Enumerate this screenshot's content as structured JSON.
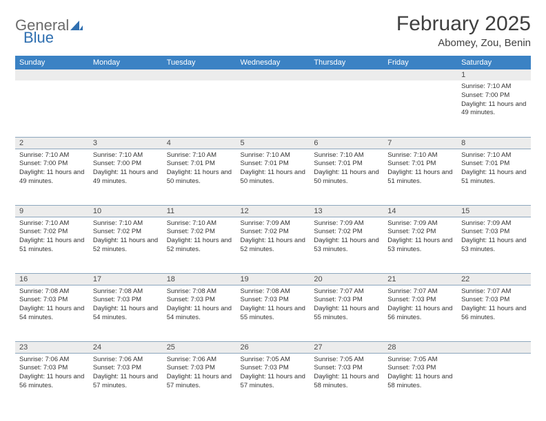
{
  "brand": {
    "part1": "General",
    "part2": "Blue"
  },
  "title": "February 2025",
  "location": "Abomey, Zou, Benin",
  "headerRow": {
    "bg": "#3b82c4",
    "fg": "#ffffff",
    "days": [
      "Sunday",
      "Monday",
      "Tuesday",
      "Wednesday",
      "Thursday",
      "Friday",
      "Saturday"
    ]
  },
  "dayStripe": {
    "bg": "#ececec",
    "border": "#8ca6bd"
  },
  "textColor": "#333333",
  "weeks": [
    [
      null,
      null,
      null,
      null,
      null,
      null,
      {
        "n": "1",
        "sr": "7:10 AM",
        "ss": "7:00 PM",
        "dl": "11 hours and 49 minutes."
      }
    ],
    [
      {
        "n": "2",
        "sr": "7:10 AM",
        "ss": "7:00 PM",
        "dl": "11 hours and 49 minutes."
      },
      {
        "n": "3",
        "sr": "7:10 AM",
        "ss": "7:00 PM",
        "dl": "11 hours and 49 minutes."
      },
      {
        "n": "4",
        "sr": "7:10 AM",
        "ss": "7:01 PM",
        "dl": "11 hours and 50 minutes."
      },
      {
        "n": "5",
        "sr": "7:10 AM",
        "ss": "7:01 PM",
        "dl": "11 hours and 50 minutes."
      },
      {
        "n": "6",
        "sr": "7:10 AM",
        "ss": "7:01 PM",
        "dl": "11 hours and 50 minutes."
      },
      {
        "n": "7",
        "sr": "7:10 AM",
        "ss": "7:01 PM",
        "dl": "11 hours and 51 minutes."
      },
      {
        "n": "8",
        "sr": "7:10 AM",
        "ss": "7:01 PM",
        "dl": "11 hours and 51 minutes."
      }
    ],
    [
      {
        "n": "9",
        "sr": "7:10 AM",
        "ss": "7:02 PM",
        "dl": "11 hours and 51 minutes."
      },
      {
        "n": "10",
        "sr": "7:10 AM",
        "ss": "7:02 PM",
        "dl": "11 hours and 52 minutes."
      },
      {
        "n": "11",
        "sr": "7:10 AM",
        "ss": "7:02 PM",
        "dl": "11 hours and 52 minutes."
      },
      {
        "n": "12",
        "sr": "7:09 AM",
        "ss": "7:02 PM",
        "dl": "11 hours and 52 minutes."
      },
      {
        "n": "13",
        "sr": "7:09 AM",
        "ss": "7:02 PM",
        "dl": "11 hours and 53 minutes."
      },
      {
        "n": "14",
        "sr": "7:09 AM",
        "ss": "7:02 PM",
        "dl": "11 hours and 53 minutes."
      },
      {
        "n": "15",
        "sr": "7:09 AM",
        "ss": "7:03 PM",
        "dl": "11 hours and 53 minutes."
      }
    ],
    [
      {
        "n": "16",
        "sr": "7:08 AM",
        "ss": "7:03 PM",
        "dl": "11 hours and 54 minutes."
      },
      {
        "n": "17",
        "sr": "7:08 AM",
        "ss": "7:03 PM",
        "dl": "11 hours and 54 minutes."
      },
      {
        "n": "18",
        "sr": "7:08 AM",
        "ss": "7:03 PM",
        "dl": "11 hours and 54 minutes."
      },
      {
        "n": "19",
        "sr": "7:08 AM",
        "ss": "7:03 PM",
        "dl": "11 hours and 55 minutes."
      },
      {
        "n": "20",
        "sr": "7:07 AM",
        "ss": "7:03 PM",
        "dl": "11 hours and 55 minutes."
      },
      {
        "n": "21",
        "sr": "7:07 AM",
        "ss": "7:03 PM",
        "dl": "11 hours and 56 minutes."
      },
      {
        "n": "22",
        "sr": "7:07 AM",
        "ss": "7:03 PM",
        "dl": "11 hours and 56 minutes."
      }
    ],
    [
      {
        "n": "23",
        "sr": "7:06 AM",
        "ss": "7:03 PM",
        "dl": "11 hours and 56 minutes."
      },
      {
        "n": "24",
        "sr": "7:06 AM",
        "ss": "7:03 PM",
        "dl": "11 hours and 57 minutes."
      },
      {
        "n": "25",
        "sr": "7:06 AM",
        "ss": "7:03 PM",
        "dl": "11 hours and 57 minutes."
      },
      {
        "n": "26",
        "sr": "7:05 AM",
        "ss": "7:03 PM",
        "dl": "11 hours and 57 minutes."
      },
      {
        "n": "27",
        "sr": "7:05 AM",
        "ss": "7:03 PM",
        "dl": "11 hours and 58 minutes."
      },
      {
        "n": "28",
        "sr": "7:05 AM",
        "ss": "7:03 PM",
        "dl": "11 hours and 58 minutes."
      },
      null
    ]
  ],
  "labels": {
    "sunrise": "Sunrise: ",
    "sunset": "Sunset: ",
    "daylight": "Daylight: "
  }
}
